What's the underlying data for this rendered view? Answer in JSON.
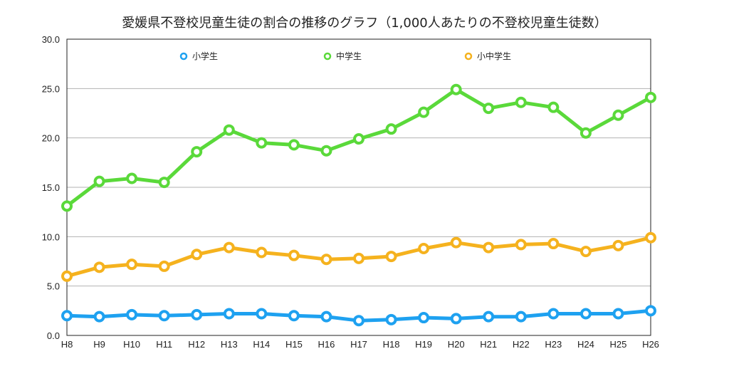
{
  "chart_data": {
    "type": "line",
    "title": "愛媛県不登校児童生徒の割合の推移のグラフ（1,000人あたりの不登校児童生徒数）",
    "xlabel": "",
    "ylabel": "",
    "categories": [
      "H8",
      "H9",
      "H10",
      "H11",
      "H12",
      "H13",
      "H14",
      "H15",
      "H16",
      "H17",
      "H18",
      "H19",
      "H20",
      "H21",
      "H22",
      "H23",
      "H24",
      "H25",
      "H26"
    ],
    "ylim": [
      0,
      30
    ],
    "yticks": [
      "0.0",
      "5.0",
      "10.0",
      "15.0",
      "20.0",
      "25.0",
      "30.0"
    ],
    "grid": true,
    "legend_position": "top",
    "series": [
      {
        "name": "小学生",
        "color": "#1ea1f0",
        "values": [
          2.0,
          1.9,
          2.1,
          2.0,
          2.1,
          2.2,
          2.2,
          2.0,
          1.9,
          1.5,
          1.6,
          1.8,
          1.7,
          1.9,
          1.9,
          2.2,
          2.2,
          2.2,
          2.5
        ]
      },
      {
        "name": "中学生",
        "color": "#5ad93a",
        "values": [
          13.1,
          15.6,
          15.9,
          15.5,
          18.6,
          20.8,
          19.5,
          19.3,
          18.7,
          19.9,
          20.9,
          22.6,
          24.9,
          23.0,
          23.6,
          23.1,
          20.5,
          22.3,
          24.1
        ]
      },
      {
        "name": "小中学生",
        "color": "#f5b21e",
        "values": [
          6.0,
          6.9,
          7.2,
          7.0,
          8.2,
          8.9,
          8.4,
          8.1,
          7.7,
          7.8,
          8.0,
          8.8,
          9.4,
          8.9,
          9.2,
          9.3,
          8.5,
          9.1,
          9.9
        ]
      }
    ]
  }
}
